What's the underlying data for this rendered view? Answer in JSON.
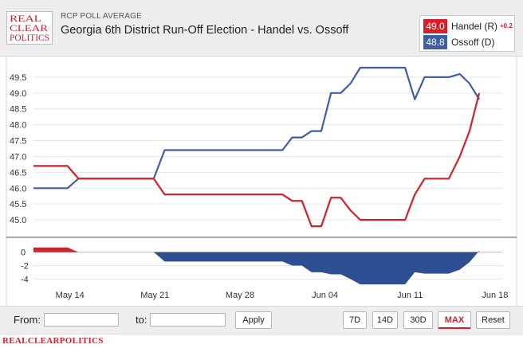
{
  "header": {
    "logo_text": [
      "REAL",
      "CLEAR",
      "POLITICS"
    ],
    "kicker": "RCP POLL AVERAGE",
    "title": "Georgia 6th District Run-Off Election - Handel vs. Ossoff"
  },
  "legend": {
    "items": [
      {
        "value": "49.0",
        "name": "Handel (R)",
        "change": "+0.2",
        "color": "#d71f29"
      },
      {
        "value": "48.8",
        "name": "Ossoff (D)",
        "change": "",
        "color": "#3c5fa3"
      }
    ]
  },
  "controls": {
    "from_label": "From:",
    "to_label": "to:",
    "from_value": "",
    "to_value": "",
    "apply_label": "Apply",
    "ranges": [
      "7D",
      "14D",
      "30D",
      "MAX",
      "Reset"
    ],
    "active_range": "MAX"
  },
  "footer": {
    "brand": "REALCLEARPOLITICS"
  },
  "chart_data": {
    "type": "line",
    "title": "Georgia 6th District Run-Off Election - Handel vs. Ossoff",
    "x_ticks": [
      {
        "label": "May 14",
        "x": 3
      },
      {
        "label": "May 21",
        "x": 10
      },
      {
        "label": "May 28",
        "x": 17
      },
      {
        "label": "Jun 04",
        "x": 24
      },
      {
        "label": "Jun 11",
        "x": 31
      },
      {
        "label": "Jun 18",
        "x": 38
      }
    ],
    "xlim": [
      0,
      38.6
    ],
    "ylim": [
      44.5,
      49.95
    ],
    "y_ticks": [
      "45.0",
      "45.5",
      "46.0",
      "46.5",
      "47.0",
      "47.5",
      "48.0",
      "48.5",
      "49.0",
      "49.5"
    ],
    "series": [
      {
        "name": "Handel (R)",
        "color": "#d71f29",
        "points": [
          [
            0,
            46.7
          ],
          [
            2.8,
            46.7
          ],
          [
            3.7,
            46.3
          ],
          [
            9.9,
            46.3
          ],
          [
            10.8,
            45.8
          ],
          [
            20.5,
            45.8
          ],
          [
            21.3,
            45.6
          ],
          [
            22.1,
            45.6
          ],
          [
            22.9,
            44.8
          ],
          [
            23.7,
            44.8
          ],
          [
            24.5,
            45.7
          ],
          [
            25.3,
            45.7
          ],
          [
            26.1,
            45.3
          ],
          [
            26.9,
            45.0
          ],
          [
            30.6,
            45.0
          ],
          [
            31.4,
            45.8
          ],
          [
            32.2,
            46.3
          ],
          [
            34.2,
            46.3
          ],
          [
            35.1,
            47.0
          ],
          [
            35.9,
            47.8
          ],
          [
            36.7,
            49.0
          ]
        ]
      },
      {
        "name": "Ossoff (D)",
        "color": "#3c5fa3",
        "points": [
          [
            0,
            46.0
          ],
          [
            2.8,
            46.0
          ],
          [
            3.7,
            46.3
          ],
          [
            9.9,
            46.3
          ],
          [
            10.8,
            47.2
          ],
          [
            20.5,
            47.2
          ],
          [
            21.3,
            47.6
          ],
          [
            22.1,
            47.6
          ],
          [
            22.9,
            47.8
          ],
          [
            23.7,
            47.8
          ],
          [
            24.5,
            49.0
          ],
          [
            25.3,
            49.0
          ],
          [
            26.1,
            49.3
          ],
          [
            26.9,
            49.8
          ],
          [
            30.6,
            49.8
          ],
          [
            31.4,
            48.8
          ],
          [
            32.2,
            49.5
          ],
          [
            34.2,
            49.5
          ],
          [
            35.1,
            49.6
          ],
          [
            35.9,
            49.3
          ],
          [
            36.7,
            48.8
          ]
        ]
      }
    ],
    "spread": {
      "name": "Handel - Ossoff spread",
      "ylim": [
        -5.5,
        1.5
      ],
      "y_ticks": [
        "0",
        "-2",
        "-4"
      ],
      "points": [
        [
          0,
          0.7
        ],
        [
          2.8,
          0.7
        ],
        [
          3.7,
          0
        ],
        [
          9.9,
          0
        ],
        [
          10.8,
          -1.4
        ],
        [
          20.5,
          -1.4
        ],
        [
          21.3,
          -2.0
        ],
        [
          22.1,
          -2.0
        ],
        [
          22.9,
          -3.0
        ],
        [
          23.7,
          -3.0
        ],
        [
          24.5,
          -3.3
        ],
        [
          25.3,
          -3.3
        ],
        [
          26.1,
          -4.0
        ],
        [
          26.9,
          -4.8
        ],
        [
          30.6,
          -4.8
        ],
        [
          31.4,
          -3.0
        ],
        [
          32.2,
          -3.2
        ],
        [
          34.2,
          -3.2
        ],
        [
          35.1,
          -2.6
        ],
        [
          35.9,
          -1.5
        ],
        [
          36.7,
          0.2
        ]
      ],
      "positive_color": "#d71f29",
      "negative_color": "#2e4f91"
    }
  }
}
